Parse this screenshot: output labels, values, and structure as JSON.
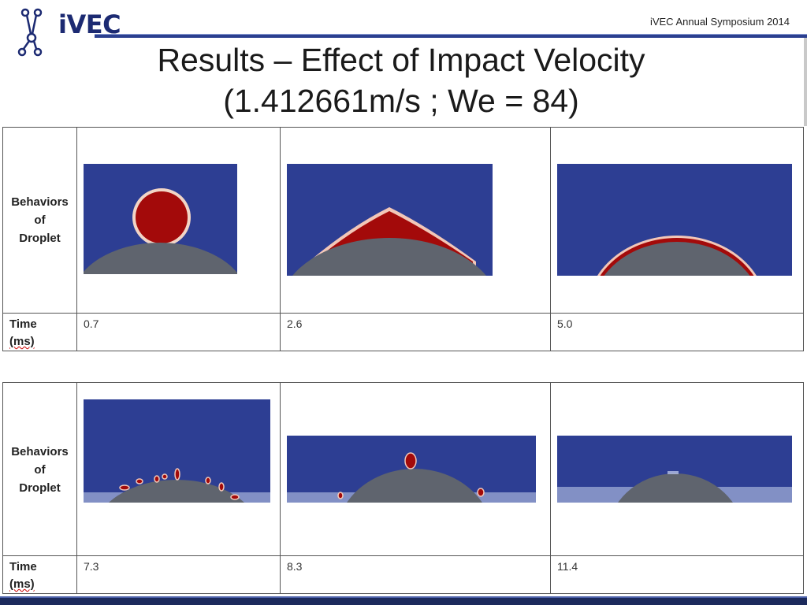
{
  "header": {
    "logo_text": "iVEC",
    "symposium": "iVEC Annual Symposium 2014",
    "title_line1": "Results – Effect of Impact Velocity",
    "title_line2": "(1.412661m/s ; We = 84)"
  },
  "colors": {
    "background_fluid": "#2d3e93",
    "droplet": "#a30a0a",
    "surface": "#5f646e",
    "brand": "#1c2a72"
  },
  "tables": [
    {
      "row_label_lines": [
        "Behaviors",
        "of",
        "Droplet"
      ],
      "time_label_lines": [
        "Time",
        "(ms)"
      ],
      "times": [
        "0.7",
        "2.6",
        "5.0"
      ]
    },
    {
      "row_label_lines": [
        "Behaviors",
        "of",
        "Droplet"
      ],
      "time_label_lines": [
        "Time",
        "(ms)"
      ],
      "times": [
        "7.3",
        "8.3",
        "11.4"
      ]
    }
  ]
}
